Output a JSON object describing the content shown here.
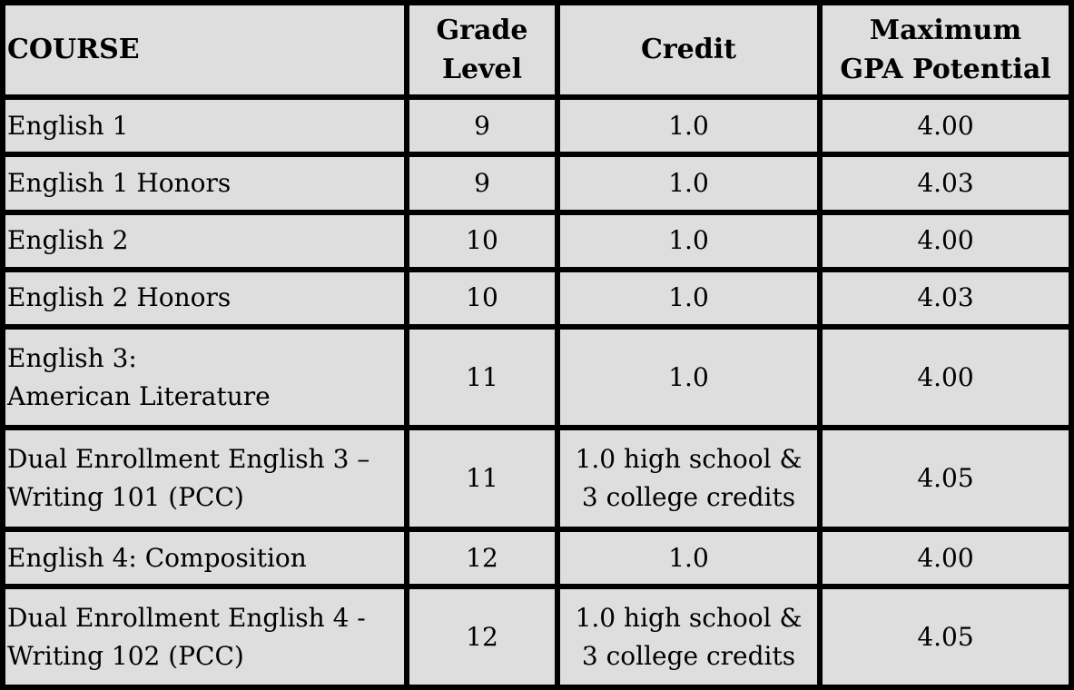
{
  "table": {
    "headers": {
      "course": "COURSE",
      "grade_level": [
        "Grade",
        "Level"
      ],
      "credit": "Credit",
      "max_gpa": [
        "Maximum",
        "GPA Potential"
      ]
    },
    "rows": [
      {
        "course": [
          "English 1"
        ],
        "grade": "9",
        "credit": [
          "1.0"
        ],
        "gpa": "4.00"
      },
      {
        "course": [
          "English 1 Honors"
        ],
        "grade": "9",
        "credit": [
          "1.0"
        ],
        "gpa": "4.03"
      },
      {
        "course": [
          "English 2"
        ],
        "grade": "10",
        "credit": [
          "1.0"
        ],
        "gpa": "4.00"
      },
      {
        "course": [
          "English 2 Honors"
        ],
        "grade": "10",
        "credit": [
          "1.0"
        ],
        "gpa": "4.03"
      },
      {
        "course": [
          "English 3:",
          "American Literature"
        ],
        "grade": "11",
        "credit": [
          "1.0"
        ],
        "gpa": "4.00"
      },
      {
        "course": [
          "Dual Enrollment English 3 –",
          "Writing 101 (PCC)"
        ],
        "grade": "11",
        "credit": [
          "1.0 high school &",
          "3 college credits"
        ],
        "gpa": "4.05"
      },
      {
        "course": [
          "English 4: Composition"
        ],
        "grade": "12",
        "credit": [
          "1.0"
        ],
        "gpa": "4.00"
      },
      {
        "course": [
          "Dual Enrollment English 4 -",
          "Writing 102 (PCC)"
        ],
        "grade": "12",
        "credit": [
          "1.0 high school &",
          "3 college credits"
        ],
        "gpa": "4.05"
      }
    ]
  }
}
